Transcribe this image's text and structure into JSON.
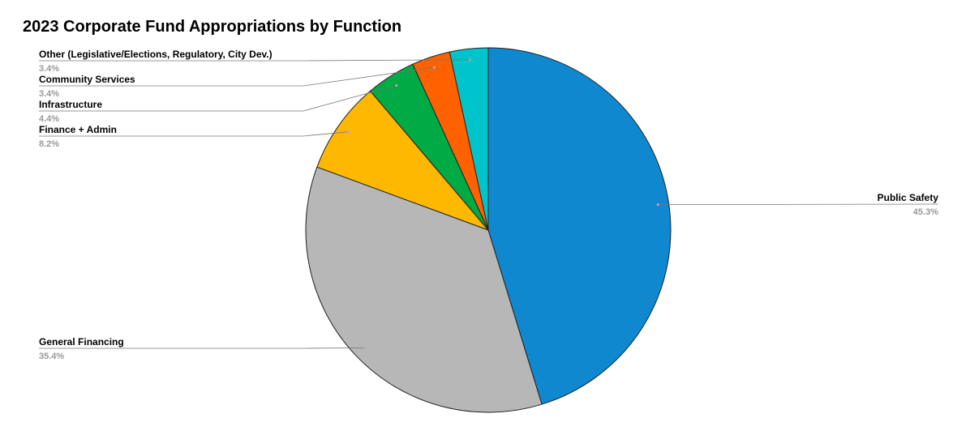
{
  "chart_data": {
    "type": "pie",
    "title": "2023 Corporate Fund Appropriations by Function",
    "slices": [
      {
        "label": "Public Safety",
        "value": 45.3,
        "pct_label": "45.3%",
        "color": "#1088d0"
      },
      {
        "label": "General Financing",
        "value": 35.4,
        "pct_label": "35.4%",
        "color": "#b7b7b7"
      },
      {
        "label": "Finance + Admin",
        "value": 8.2,
        "pct_label": "8.2%",
        "color": "#ffb800"
      },
      {
        "label": "Infrastructure",
        "value": 4.4,
        "pct_label": "4.4%",
        "color": "#00aa44"
      },
      {
        "label": "Community Services",
        "value": 3.4,
        "pct_label": "3.4%",
        "color": "#ff6000"
      },
      {
        "label": "Other (Legislative/Elections, Regulatory, City Dev.)",
        "value": 3.4,
        "pct_label": "3.4%",
        "color": "#00c4cc"
      }
    ],
    "start_direction": "top",
    "direction": "clockwise",
    "slice_stroke": "#222222",
    "leader_color": "#777777"
  }
}
